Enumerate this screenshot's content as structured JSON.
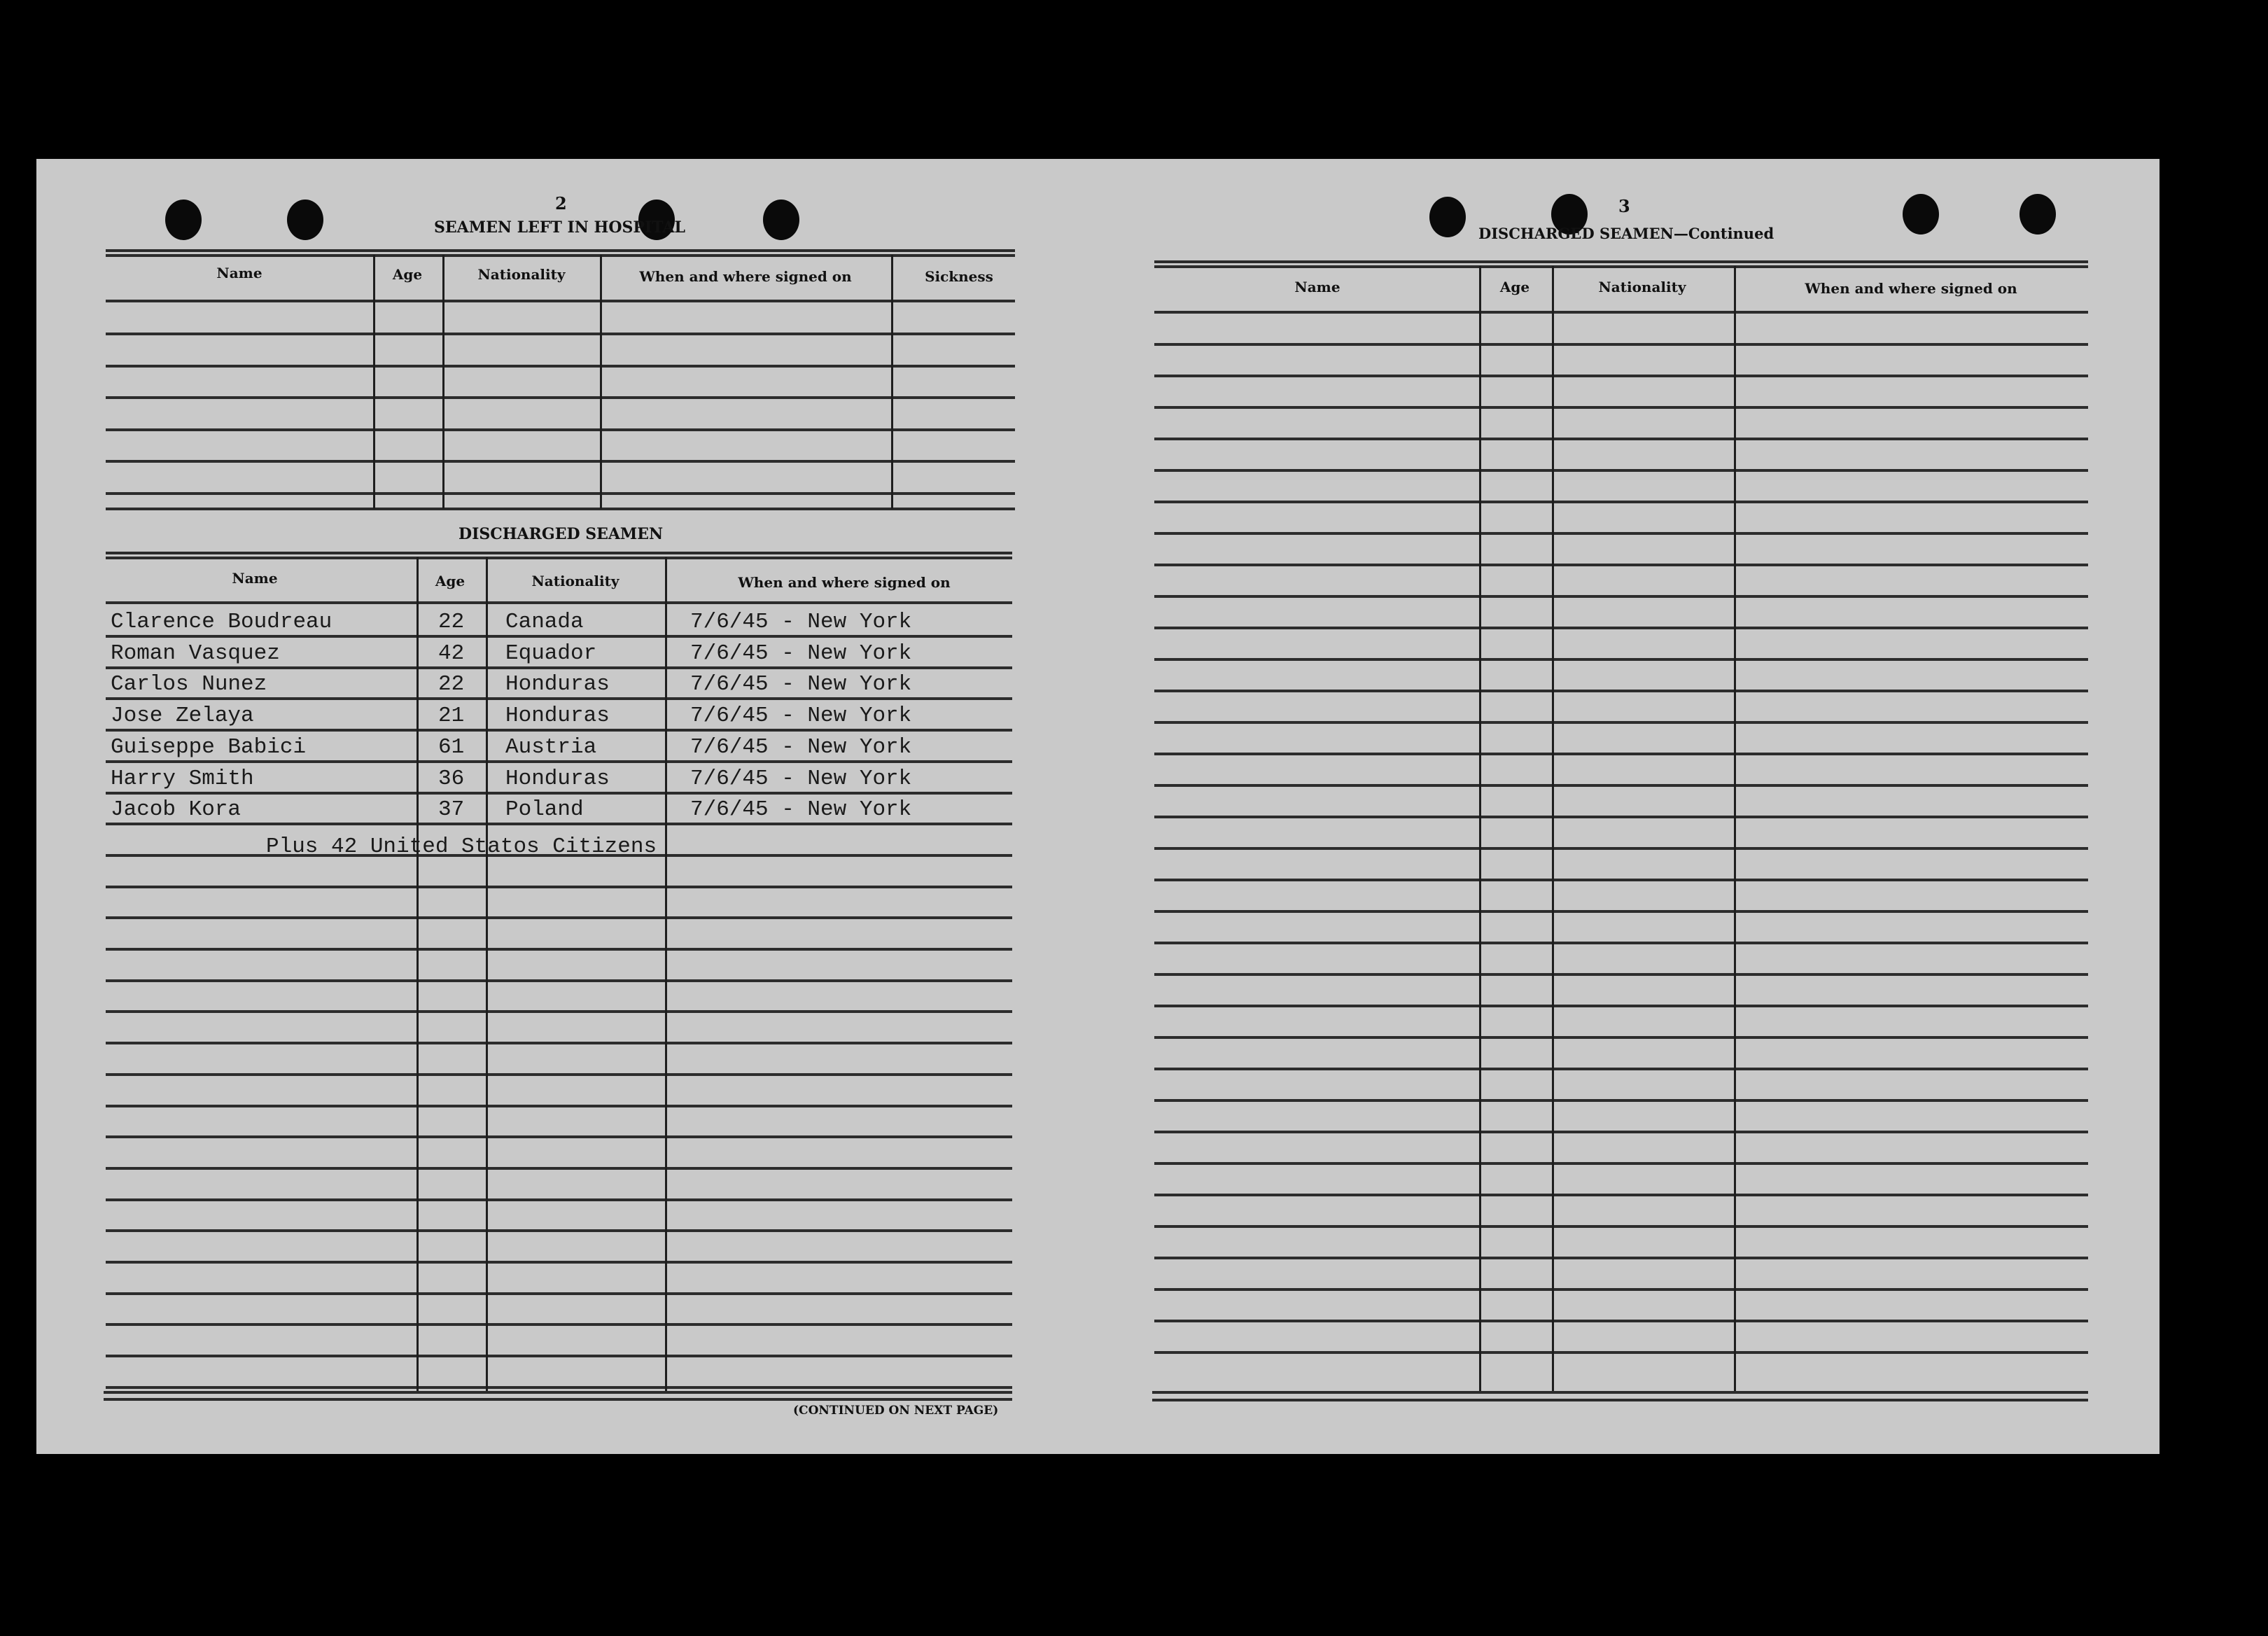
{
  "left_page": {
    "page_number": "2",
    "hospital_section": {
      "title": "SEAMEN LEFT IN HOSPITAL",
      "columns": [
        "Name",
        "Age",
        "Nationality",
        "When and where signed on",
        "Sickness"
      ]
    },
    "discharged_section": {
      "title": "DISCHARGED SEAMEN",
      "columns": [
        "Name",
        "Age",
        "Nationality",
        "When and where signed on"
      ],
      "rows": [
        {
          "name": "Clarence Boudreau",
          "age": "22",
          "nationality": "Canada",
          "signed_on": "7/6/45 - New York"
        },
        {
          "name": "Roman Vasquez",
          "age": "42",
          "nationality": "Equador",
          "signed_on": "7/6/45 - New York"
        },
        {
          "name": "Carlos Nunez",
          "age": "22",
          "nationality": "Honduras",
          "signed_on": "7/6/45 - New York"
        },
        {
          "name": "Jose Zelaya",
          "age": "21",
          "nationality": "Honduras",
          "signed_on": "7/6/45 - New York"
        },
        {
          "name": "Guiseppe Babici",
          "age": "61",
          "nationality": "Austria",
          "signed_on": "7/6/45 - New York"
        },
        {
          "name": "Harry Smith",
          "age": "36",
          "nationality": "Honduras",
          "signed_on": "7/6/45 - New York"
        },
        {
          "name": "Jacob Kora",
          "age": "37",
          "nationality": "Poland",
          "signed_on": "7/6/45 - New York"
        }
      ],
      "note": "Plus 42 United Statos Citizens"
    },
    "footer": "(CONTINUED ON NEXT PAGE)"
  },
  "right_page": {
    "page_number": "3",
    "title": "DISCHARGED SEAMEN—Continued",
    "columns": [
      "Name",
      "Age",
      "Nationality",
      "When and where signed on"
    ]
  }
}
